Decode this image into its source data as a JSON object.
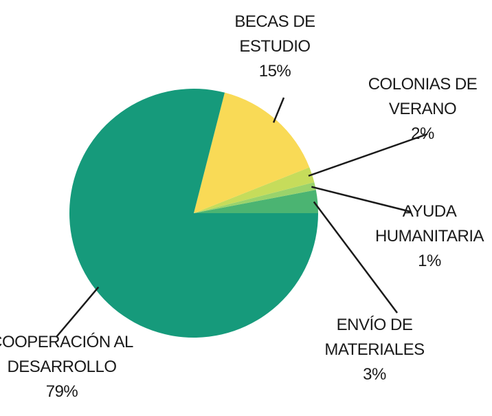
{
  "chart_data": {
    "type": "pie",
    "categories": [
      "ENVÍO DE MATERIALES",
      "AYUDA HUMANITARIA",
      "COLONIAS DE VERANO",
      "BECAS DE ESTUDIO",
      "COOPERACIÓN AL DESARROLLO"
    ],
    "values": [
      3,
      1,
      2,
      15,
      79
    ],
    "value_labels": [
      "3%",
      "1%",
      "2%",
      "15%",
      "79%"
    ],
    "colors": [
      "#4bb472",
      "#9ad36b",
      "#c6dc5b",
      "#f9da56",
      "#169a7b"
    ]
  }
}
